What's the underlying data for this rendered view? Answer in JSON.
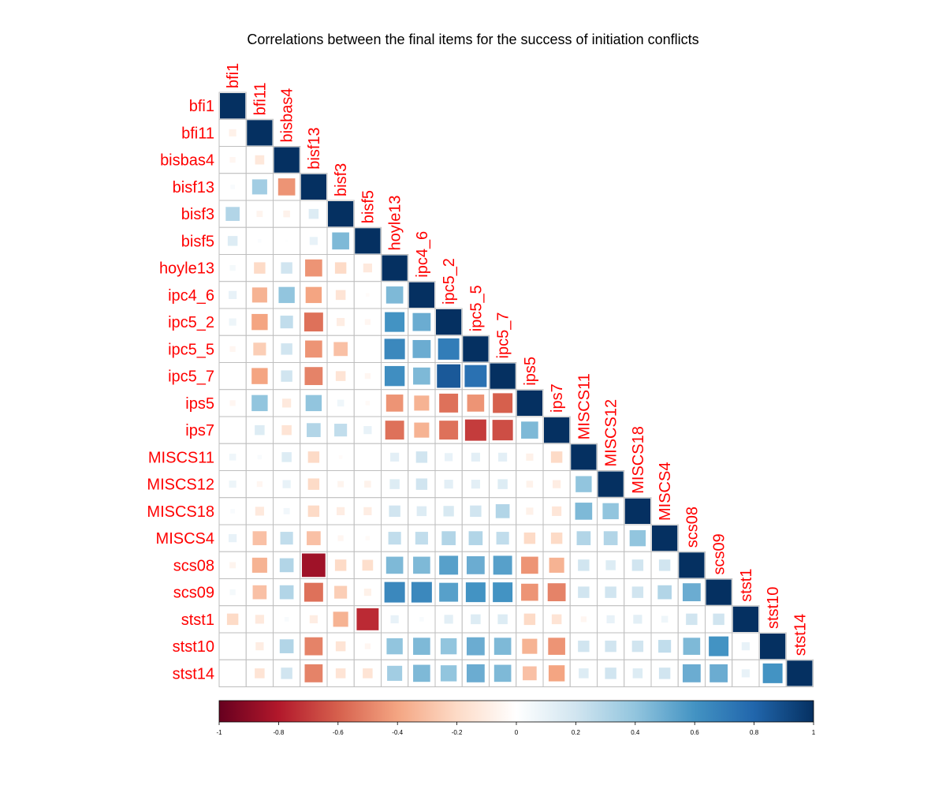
{
  "chart_data": {
    "type": "heatmap",
    "title": "Correlations between the final items for the success of initiation conflicts",
    "variables": [
      "bfi1",
      "bfi11",
      "bisbas4",
      "bisf13",
      "bisf3",
      "bisf5",
      "hoyle13",
      "ipc4_6",
      "ipc5_2",
      "ipc5_5",
      "ipc5_7",
      "ips5",
      "ips7",
      "MISCS11",
      "MISCS12",
      "MISCS18",
      "MISCS4",
      "scs08",
      "scs09",
      "stst1",
      "stst10",
      "stst14"
    ],
    "matrix_lower": [
      [
        1
      ],
      [
        -0.08,
        1
      ],
      [
        -0.05,
        -0.13,
        1
      ],
      [
        0.03,
        0.35,
        -0.45,
        1
      ],
      [
        0.3,
        -0.06,
        -0.07,
        0.15,
        1
      ],
      [
        0.15,
        0.02,
        0.01,
        0.1,
        0.45,
        1
      ],
      [
        0.05,
        -0.2,
        0.2,
        -0.45,
        -0.2,
        -0.12,
        1
      ],
      [
        0.1,
        -0.35,
        0.4,
        -0.4,
        -0.15,
        -0.02,
        0.45,
        1
      ],
      [
        0.08,
        -0.4,
        0.25,
        -0.55,
        -0.1,
        -0.05,
        0.6,
        0.5,
        1
      ],
      [
        -0.05,
        -0.25,
        0.2,
        -0.45,
        -0.3,
        0.0,
        0.65,
        0.5,
        0.7,
        1
      ],
      [
        0.0,
        -0.4,
        0.2,
        -0.5,
        -0.15,
        -0.05,
        0.62,
        0.45,
        0.85,
        0.75,
        1
      ],
      [
        -0.05,
        0.4,
        -0.12,
        0.4,
        0.07,
        -0.03,
        -0.45,
        -0.35,
        -0.55,
        -0.45,
        -0.6,
        1
      ],
      [
        0.0,
        0.15,
        -0.15,
        0.3,
        0.25,
        0.1,
        -0.55,
        -0.35,
        -0.55,
        -0.7,
        -0.65,
        0.45,
        1
      ],
      [
        0.07,
        0.03,
        0.15,
        -0.2,
        -0.02,
        0.0,
        0.12,
        0.2,
        0.1,
        0.12,
        0.12,
        -0.08,
        -0.2,
        1
      ],
      [
        0.08,
        -0.05,
        0.1,
        -0.2,
        -0.06,
        -0.07,
        0.15,
        0.2,
        0.12,
        0.12,
        0.15,
        -0.07,
        -0.1,
        0.4,
        1
      ],
      [
        0.03,
        -0.12,
        0.06,
        -0.2,
        -0.1,
        -0.1,
        0.2,
        0.15,
        0.17,
        0.2,
        0.3,
        -0.08,
        -0.14,
        0.45,
        0.4,
        1
      ],
      [
        0.1,
        -0.3,
        0.25,
        -0.3,
        -0.05,
        -0.03,
        0.25,
        0.25,
        0.3,
        0.3,
        0.25,
        -0.2,
        -0.2,
        0.3,
        0.3,
        0.4,
        1
      ],
      [
        -0.06,
        -0.35,
        0.3,
        -0.85,
        -0.2,
        -0.18,
        0.45,
        0.45,
        0.55,
        0.5,
        0.55,
        -0.45,
        -0.35,
        0.2,
        0.15,
        0.2,
        0.2,
        1
      ],
      [
        0.05,
        -0.3,
        0.3,
        -0.55,
        -0.25,
        -0.08,
        0.65,
        0.65,
        0.55,
        0.6,
        0.6,
        -0.45,
        -0.5,
        0.2,
        0.2,
        0.2,
        0.3,
        0.5,
        1
      ],
      [
        -0.2,
        -0.12,
        0.03,
        -0.1,
        -0.35,
        -0.75,
        0.1,
        0.03,
        0.12,
        0.15,
        0.15,
        -0.2,
        -0.15,
        -0.05,
        0.1,
        0.12,
        0.07,
        0.2,
        0.2,
        1
      ],
      [
        0.0,
        -0.1,
        0.3,
        -0.5,
        -0.15,
        -0.05,
        0.4,
        0.45,
        0.4,
        0.5,
        0.45,
        -0.35,
        -0.45,
        0.2,
        0.2,
        0.2,
        0.25,
        0.45,
        0.6,
        0.1,
        1
      ],
      [
        0.0,
        -0.15,
        0.2,
        -0.5,
        -0.15,
        -0.15,
        0.35,
        0.45,
        0.4,
        0.5,
        0.45,
        -0.3,
        -0.4,
        0.15,
        0.2,
        0.15,
        0.2,
        0.5,
        0.5,
        0.1,
        0.6,
        1
      ]
    ],
    "colorbar": {
      "min": -1,
      "max": 1,
      "tick_labels": [
        "-1",
        "-0.8",
        "-0.6",
        "-0.4",
        "-0.2",
        "0",
        "0.2",
        "0.4",
        "0.6",
        "0.8",
        "1"
      ]
    },
    "colors": {
      "label": "#ff0000",
      "grid": "#bebebe",
      "scale": [
        "#67001F",
        "#B2182B",
        "#D6604D",
        "#F4A582",
        "#FDDBC7",
        "#FFFFFF",
        "#D1E5F0",
        "#92C5DE",
        "#4393C3",
        "#2166AC",
        "#053061"
      ]
    }
  }
}
